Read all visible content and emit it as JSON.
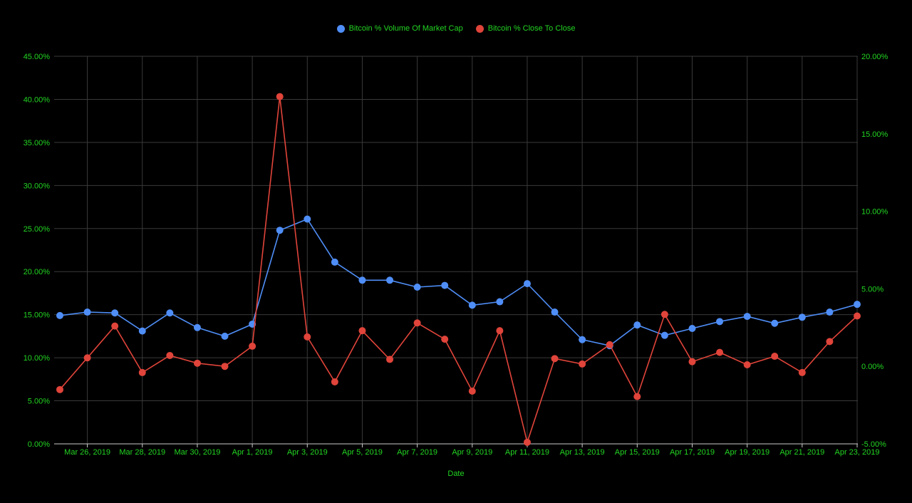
{
  "colors": {
    "background": "#000000",
    "text": "#22d422",
    "grid": "#3a3a3a",
    "axis": "#cccccc",
    "series_volume": "#4f8ef7",
    "series_close": "#e0443a"
  },
  "chart_data": {
    "type": "line",
    "title": "",
    "xlabel": "Date",
    "ylabel": "",
    "legend_position": "top",
    "grid": true,
    "x": [
      "2019-03-25",
      "2019-03-26",
      "2019-03-27",
      "2019-03-28",
      "2019-03-29",
      "2019-03-30",
      "2019-03-31",
      "2019-04-01",
      "2019-04-02",
      "2019-04-03",
      "2019-04-04",
      "2019-04-05",
      "2019-04-06",
      "2019-04-07",
      "2019-04-08",
      "2019-04-09",
      "2019-04-10",
      "2019-04-11",
      "2019-04-12",
      "2019-04-13",
      "2019-04-14",
      "2019-04-15",
      "2019-04-16",
      "2019-04-17",
      "2019-04-18",
      "2019-04-19",
      "2019-04-20",
      "2019-04-21",
      "2019-04-22",
      "2019-04-23"
    ],
    "x_tick_labels": [
      "Mar 26, 2019",
      "Mar 28, 2019",
      "Mar 30, 2019",
      "Apr 1, 2019",
      "Apr 3, 2019",
      "Apr 5, 2019",
      "Apr 7, 2019",
      "Apr 9, 2019",
      "Apr 11, 2019",
      "Apr 13, 2019",
      "Apr 15, 2019",
      "Apr 17, 2019",
      "Apr 19, 2019",
      "Apr 21, 2019",
      "Apr 23, 2019"
    ],
    "y_left": {
      "ylim": [
        0,
        45
      ],
      "ticks": [
        0,
        5,
        10,
        15,
        20,
        25,
        30,
        35,
        40,
        45
      ],
      "tick_labels": [
        "0.00%",
        "5.00%",
        "10.00%",
        "15.00%",
        "20.00%",
        "25.00%",
        "30.00%",
        "35.00%",
        "40.00%",
        "45.00%"
      ]
    },
    "y_right": {
      "ylim": [
        -5,
        20
      ],
      "ticks": [
        -5,
        0,
        5,
        10,
        15,
        20
      ],
      "tick_labels": [
        "-5.00%",
        "0.00%",
        "5.00%",
        "10.00%",
        "15.00%",
        "20.00%"
      ]
    },
    "series": [
      {
        "name": "Bitcoin % Volume Of Market Cap",
        "axis": "left",
        "values": [
          14.9,
          15.3,
          15.2,
          13.1,
          15.2,
          13.5,
          12.5,
          13.9,
          24.8,
          26.1,
          21.1,
          19.0,
          19.0,
          18.2,
          18.4,
          16.1,
          16.5,
          18.6,
          15.3,
          12.1,
          11.4,
          13.8,
          12.6,
          13.4,
          14.2,
          14.8,
          14.0,
          14.7,
          15.3,
          16.2
        ]
      },
      {
        "name": "Bitcoin % Close To Close",
        "axis": "right",
        "values": [
          -1.5,
          0.55,
          2.6,
          -0.4,
          0.7,
          0.2,
          0.0,
          1.3,
          17.4,
          1.9,
          -1.0,
          2.3,
          0.45,
          2.8,
          1.75,
          -1.6,
          2.3,
          -4.9,
          0.5,
          0.15,
          1.4,
          -1.95,
          3.35,
          0.3,
          0.9,
          0.1,
          0.65,
          -0.4,
          1.6,
          3.25
        ]
      }
    ]
  }
}
